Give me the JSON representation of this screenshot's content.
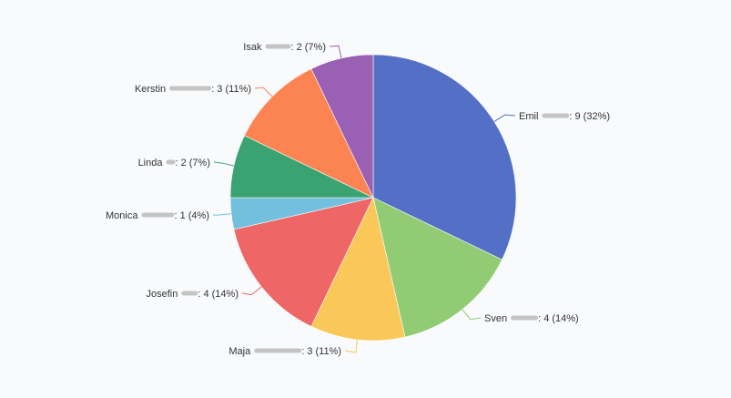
{
  "chart_data": {
    "type": "pie",
    "title": "",
    "total": 28,
    "start_angle_deg": 90,
    "direction": "clockwise",
    "categories": [
      "Emil",
      "Sven",
      "Maja",
      "Josefin",
      "Monica",
      "Linda",
      "Kerstin",
      "Isak"
    ],
    "values": [
      9,
      4,
      3,
      4,
      1,
      2,
      3,
      2
    ],
    "percentages": [
      32,
      14,
      11,
      14,
      4,
      7,
      11,
      7
    ],
    "colors": [
      "#5470c6",
      "#91cc75",
      "#fac858",
      "#ee6666",
      "#73c0de",
      "#3ba272",
      "#fc8452",
      "#9a60b4"
    ],
    "labels": [
      "Emil: 9 (32%)",
      "Sven: 4 (14%)",
      "Maja: 3 (11%)",
      "Josefin: 4 (14%)",
      "Monica: 1 (4%)",
      "Linda: 2 (7%)",
      "Kerstin: 3 (11%)",
      "Isak: 2 (7%)"
    ],
    "legend": "none",
    "label_format": "{name} [redacted]: {value} ({percent}%)"
  },
  "slices": [
    {
      "name": "Emil",
      "value_text": ": 9 (32%)",
      "redact_w": 30
    },
    {
      "name": "Sven",
      "value_text": ": 4 (14%)",
      "redact_w": 30
    },
    {
      "name": "Maja",
      "value_text": ": 3 (11%)",
      "redact_w": 52
    },
    {
      "name": "Josefin",
      "value_text": ": 4 (14%)",
      "redact_w": 18
    },
    {
      "name": "Monica",
      "value_text": ": 1 (4%)",
      "redact_w": 36
    },
    {
      "name": "Linda",
      "value_text": ": 2 (7%)",
      "redact_w": 10
    },
    {
      "name": "Kerstin",
      "value_text": ": 3 (11%)",
      "redact_w": 46
    },
    {
      "name": "Isak",
      "value_text": ": 2 (7%)",
      "redact_w": 28
    }
  ]
}
